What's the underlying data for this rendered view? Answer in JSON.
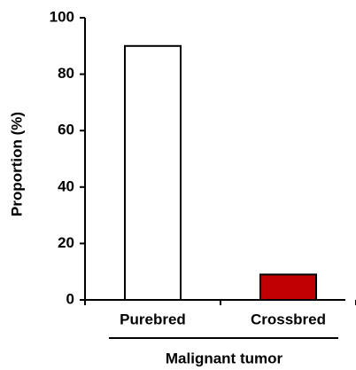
{
  "chart_data": {
    "type": "bar",
    "categories": [
      "Purebred",
      "Crossbred"
    ],
    "values": [
      90,
      9
    ],
    "colors": [
      "#ffffff",
      "#c00000"
    ],
    "ylabel": "Proportion (%)",
    "xlabel": "Malignant tumor",
    "ylim": [
      0,
      100
    ],
    "yticks": [
      0,
      20,
      40,
      60,
      80,
      100
    ]
  }
}
